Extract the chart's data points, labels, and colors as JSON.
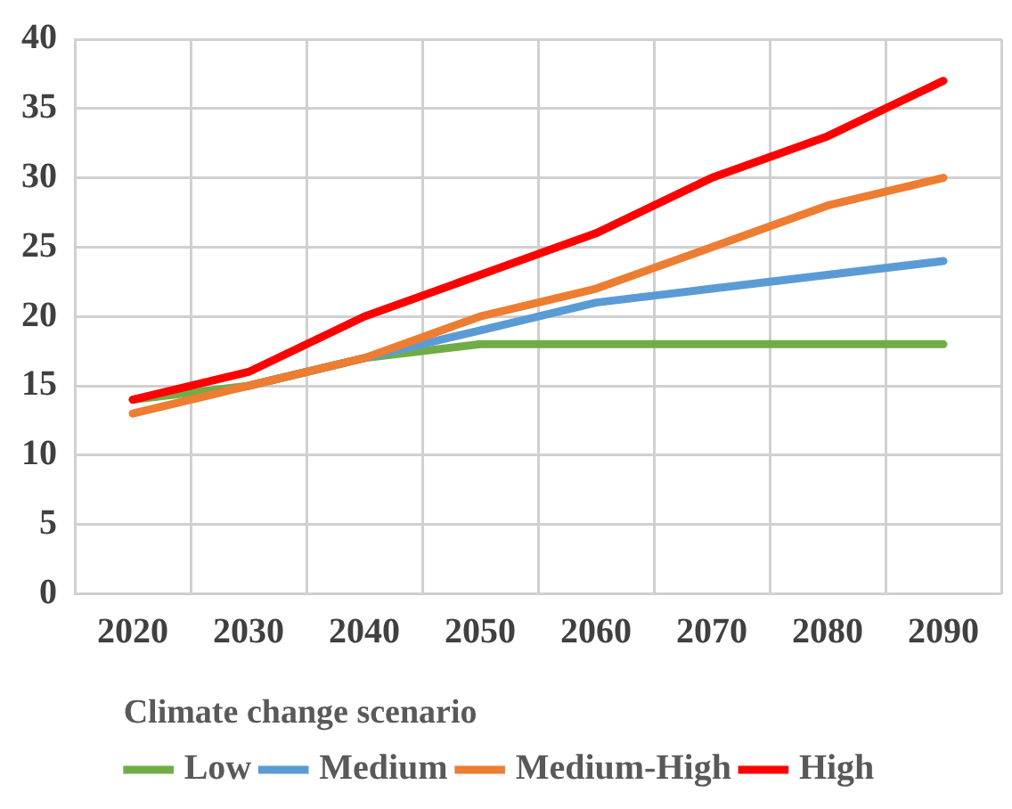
{
  "chart_data": {
    "type": "line",
    "categories": [
      "2020",
      "2030",
      "2040",
      "2050",
      "2060",
      "2070",
      "2080",
      "2090"
    ],
    "series": [
      {
        "name": "Low",
        "color": "#70ad47",
        "values": [
          14,
          15,
          17,
          18,
          18,
          18,
          18,
          18
        ]
      },
      {
        "name": "Medium",
        "color": "#5b9bd5",
        "values": [
          null,
          15,
          17,
          19,
          21,
          22,
          23,
          24
        ]
      },
      {
        "name": "Medium-High",
        "color": "#ed7d31",
        "values": [
          13,
          15,
          17,
          20,
          22,
          25,
          28,
          30
        ]
      },
      {
        "name": "High",
        "color": "#ff0000",
        "values": [
          14,
          16,
          20,
          23,
          26,
          30,
          33,
          37
        ]
      }
    ],
    "ylim": [
      0,
      40
    ],
    "yticks": [
      0,
      5,
      10,
      15,
      20,
      25,
      30,
      35,
      40
    ],
    "grid": true,
    "legend": "bottom",
    "legend_title": "Climate change scenario",
    "marker": "none",
    "line_style": "solid"
  }
}
